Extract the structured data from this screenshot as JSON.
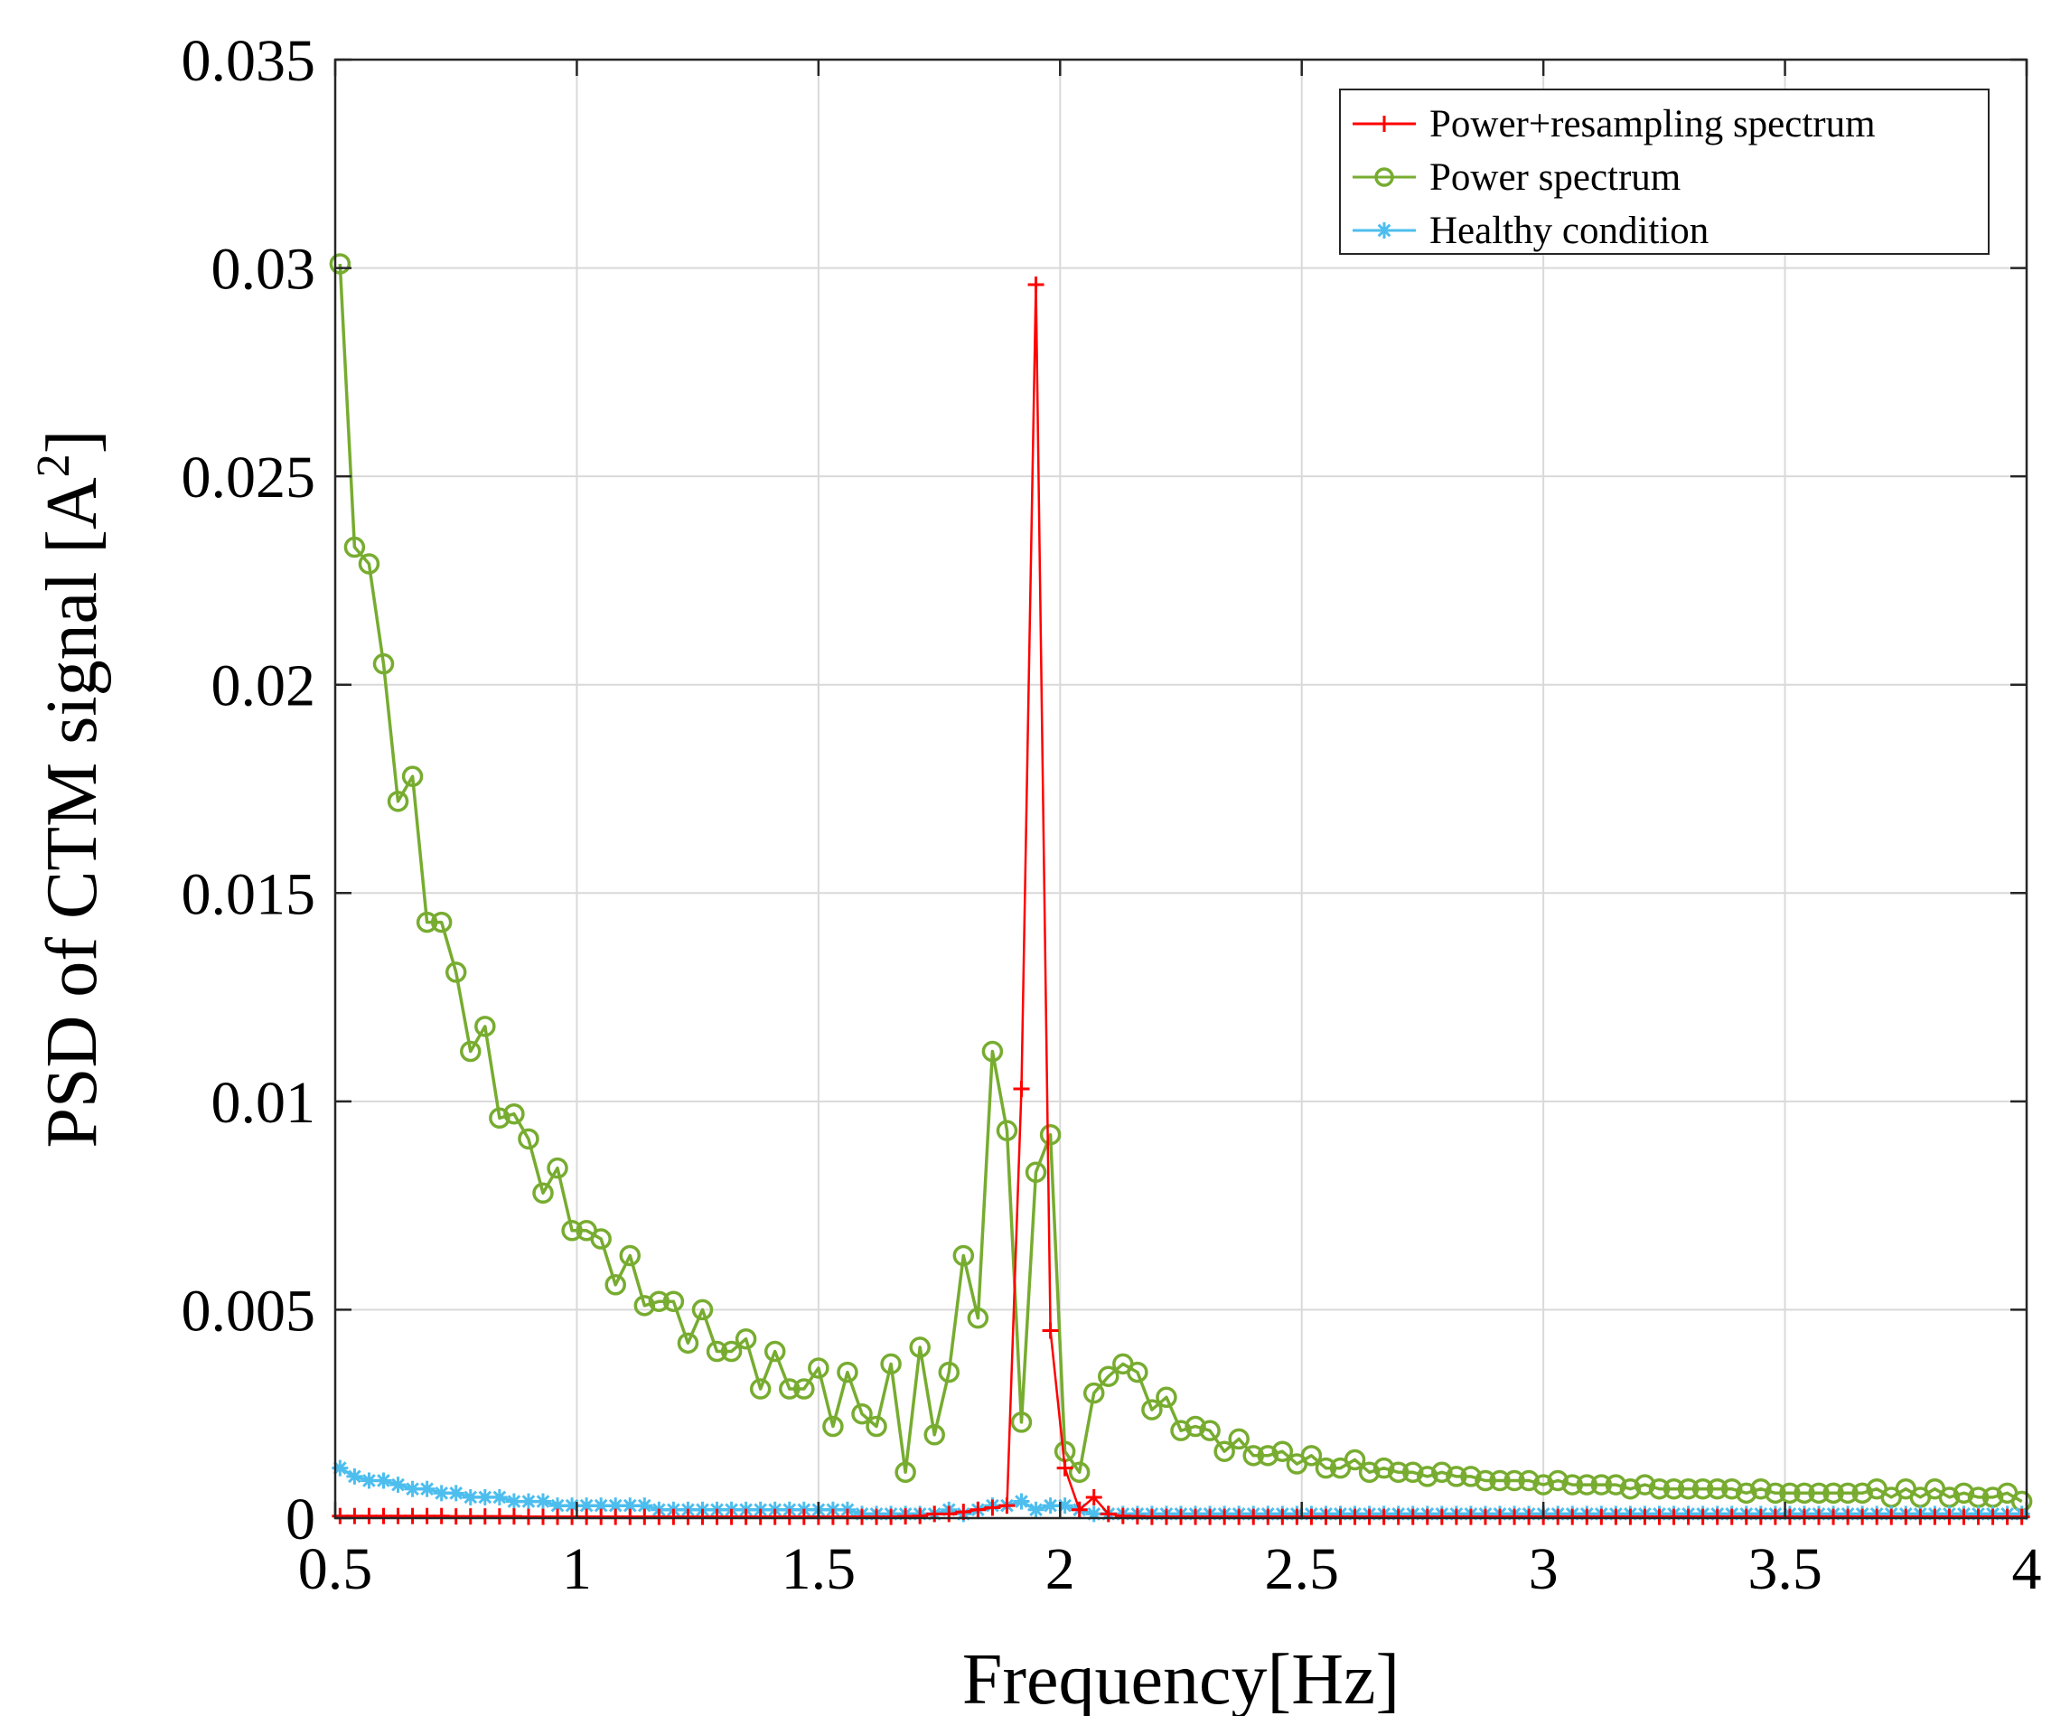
{
  "chart_data": {
    "type": "line",
    "title": "",
    "xlabel": "Frequency[Hz]",
    "ylabel_main": "PSD of CTM signal [A",
    "ylabel_sup": "2",
    "ylabel_end": "]",
    "xlim": [
      0.5,
      4
    ],
    "ylim": [
      0,
      0.035
    ],
    "xticks": [
      0.5,
      1,
      1.5,
      2,
      2.5,
      3,
      3.5,
      4
    ],
    "xtick_labels": [
      "0.5",
      "1",
      "1.5",
      "2",
      "2.5",
      "3",
      "3.5",
      "4"
    ],
    "yticks": [
      0,
      0.005,
      0.01,
      0.015,
      0.02,
      0.025,
      0.03,
      0.035
    ],
    "ytick_labels": [
      "0",
      "0.005",
      "0.01",
      "0.015",
      "0.02",
      "0.025",
      "0.03",
      "0.035"
    ],
    "grid": true,
    "legend_position": "top-right",
    "series": [
      {
        "name": "Power+resampling spectrum",
        "color": "#ff0000",
        "marker": "plus",
        "x": [
          0.51,
          0.54,
          0.57,
          0.6,
          0.63,
          0.66,
          0.69,
          0.72,
          0.75,
          0.78,
          0.81,
          0.84,
          0.87,
          0.9,
          0.93,
          0.96,
          0.99,
          1.02,
          1.05,
          1.08,
          1.11,
          1.14,
          1.17,
          1.2,
          1.23,
          1.26,
          1.29,
          1.32,
          1.35,
          1.38,
          1.41,
          1.44,
          1.47,
          1.5,
          1.53,
          1.56,
          1.59,
          1.62,
          1.65,
          1.68,
          1.71,
          1.74,
          1.77,
          1.8,
          1.83,
          1.86,
          1.89,
          1.92,
          1.95,
          1.98,
          2.01,
          2.04,
          2.07,
          2.1,
          2.13,
          2.16,
          2.19,
          2.22,
          2.25,
          2.28,
          2.31,
          2.34,
          2.37,
          2.4,
          2.43,
          2.46,
          2.49,
          2.52,
          2.55,
          2.58,
          2.61,
          2.64,
          2.67,
          2.7,
          2.73,
          2.76,
          2.79,
          2.82,
          2.85,
          2.88,
          2.91,
          2.94,
          2.97,
          3.0,
          3.03,
          3.06,
          3.09,
          3.12,
          3.15,
          3.18,
          3.21,
          3.24,
          3.27,
          3.3,
          3.33,
          3.36,
          3.39,
          3.42,
          3.45,
          3.48,
          3.51,
          3.54,
          3.57,
          3.6,
          3.63,
          3.66,
          3.69,
          3.72,
          3.75,
          3.78,
          3.81,
          3.84,
          3.87,
          3.9,
          3.93,
          3.96,
          3.99
        ],
        "y": [
          5e-05,
          5e-05,
          5e-05,
          5e-05,
          5e-05,
          5e-05,
          5e-05,
          5e-05,
          4e-05,
          4e-05,
          4e-05,
          4e-05,
          4e-05,
          3e-05,
          3e-05,
          3e-05,
          3e-05,
          3e-05,
          3e-05,
          3e-05,
          3e-05,
          3e-05,
          3e-05,
          3e-05,
          3e-05,
          3e-05,
          3e-05,
          3e-05,
          3e-05,
          3e-05,
          3e-05,
          3e-05,
          3e-05,
          3e-05,
          3e-05,
          3e-05,
          3e-05,
          3e-05,
          3e-05,
          4e-05,
          5e-05,
          0.0001,
          0.0001,
          0.00015,
          0.0002,
          0.00025,
          0.0003,
          0.0103,
          0.0296,
          0.0045,
          0.0012,
          0.0002,
          0.0005,
          0.0001,
          5e-05,
          4e-05,
          3e-05,
          3e-05,
          3e-05,
          3e-05,
          3e-05,
          3e-05,
          3e-05,
          3e-05,
          3e-05,
          3e-05,
          3e-05,
          3e-05,
          3e-05,
          3e-05,
          3e-05,
          3e-05,
          3e-05,
          3e-05,
          3e-05,
          3e-05,
          3e-05,
          3e-05,
          3e-05,
          3e-05,
          3e-05,
          3e-05,
          3e-05,
          3e-05,
          3e-05,
          3e-05,
          3e-05,
          3e-05,
          3e-05,
          3e-05,
          3e-05,
          3e-05,
          3e-05,
          3e-05,
          3e-05,
          3e-05,
          3e-05,
          3e-05,
          3e-05,
          3e-05,
          3e-05,
          3e-05,
          3e-05,
          3e-05,
          3e-05,
          3e-05,
          3e-05,
          3e-05,
          3e-05,
          3e-05,
          3e-05,
          3e-05,
          3e-05,
          3e-05,
          3e-05,
          3e-05,
          3e-05
        ]
      },
      {
        "name": "Power spectrum",
        "color": "#77ac30",
        "marker": "circle",
        "x": [
          0.51,
          0.54,
          0.57,
          0.6,
          0.63,
          0.66,
          0.69,
          0.72,
          0.75,
          0.78,
          0.81,
          0.84,
          0.87,
          0.9,
          0.93,
          0.96,
          0.99,
          1.02,
          1.05,
          1.08,
          1.11,
          1.14,
          1.17,
          1.2,
          1.23,
          1.26,
          1.29,
          1.32,
          1.35,
          1.38,
          1.41,
          1.44,
          1.47,
          1.5,
          1.53,
          1.56,
          1.59,
          1.62,
          1.65,
          1.68,
          1.71,
          1.74,
          1.77,
          1.8,
          1.83,
          1.86,
          1.89,
          1.92,
          1.95,
          1.98,
          2.01,
          2.04,
          2.07,
          2.1,
          2.13,
          2.16,
          2.19,
          2.22,
          2.25,
          2.28,
          2.31,
          2.34,
          2.37,
          2.4,
          2.43,
          2.46,
          2.49,
          2.52,
          2.55,
          2.58,
          2.61,
          2.64,
          2.67,
          2.7,
          2.73,
          2.76,
          2.79,
          2.82,
          2.85,
          2.88,
          2.91,
          2.94,
          2.97,
          3.0,
          3.03,
          3.06,
          3.09,
          3.12,
          3.15,
          3.18,
          3.21,
          3.24,
          3.27,
          3.3,
          3.33,
          3.36,
          3.39,
          3.42,
          3.45,
          3.48,
          3.51,
          3.54,
          3.57,
          3.6,
          3.63,
          3.66,
          3.69,
          3.72,
          3.75,
          3.78,
          3.81,
          3.84,
          3.87,
          3.9,
          3.93,
          3.96,
          3.99
        ],
        "y": [
          0.0301,
          0.0233,
          0.0229,
          0.0205,
          0.0172,
          0.0178,
          0.0143,
          0.0143,
          0.0131,
          0.0112,
          0.0118,
          0.0096,
          0.0097,
          0.0091,
          0.0078,
          0.0084,
          0.0069,
          0.0069,
          0.0067,
          0.0056,
          0.0063,
          0.0051,
          0.0052,
          0.0052,
          0.0042,
          0.005,
          0.004,
          0.004,
          0.0043,
          0.0031,
          0.004,
          0.0031,
          0.0031,
          0.0036,
          0.0022,
          0.0035,
          0.0025,
          0.0022,
          0.0037,
          0.0011,
          0.0041,
          0.002,
          0.0035,
          0.0063,
          0.0048,
          0.0112,
          0.0093,
          0.0023,
          0.0083,
          0.0092,
          0.0016,
          0.0011,
          0.003,
          0.0034,
          0.0037,
          0.0035,
          0.0026,
          0.0029,
          0.0021,
          0.0022,
          0.0021,
          0.0016,
          0.0019,
          0.0015,
          0.0015,
          0.0016,
          0.0013,
          0.0015,
          0.0012,
          0.0012,
          0.0014,
          0.0011,
          0.0012,
          0.0011,
          0.0011,
          0.001,
          0.0011,
          0.001,
          0.001,
          0.0009,
          0.0009,
          0.0009,
          0.0009,
          0.0008,
          0.0009,
          0.0008,
          0.0008,
          0.0008,
          0.0008,
          0.0007,
          0.0008,
          0.0007,
          0.0007,
          0.0007,
          0.0007,
          0.0007,
          0.0007,
          0.0006,
          0.0007,
          0.0006,
          0.0006,
          0.0006,
          0.0006,
          0.0006,
          0.0006,
          0.0006,
          0.0007,
          0.0005,
          0.0007,
          0.0005,
          0.0007,
          0.0005,
          0.0006,
          0.0005,
          0.0005,
          0.0006,
          0.0004
        ]
      },
      {
        "name": "Healthy condition",
        "color": "#4dbeee",
        "marker": "asterisk",
        "x": [
          0.51,
          0.54,
          0.57,
          0.6,
          0.63,
          0.66,
          0.69,
          0.72,
          0.75,
          0.78,
          0.81,
          0.84,
          0.87,
          0.9,
          0.93,
          0.96,
          0.99,
          1.02,
          1.05,
          1.08,
          1.11,
          1.14,
          1.17,
          1.2,
          1.23,
          1.26,
          1.29,
          1.32,
          1.35,
          1.38,
          1.41,
          1.44,
          1.47,
          1.5,
          1.53,
          1.56,
          1.59,
          1.62,
          1.65,
          1.68,
          1.71,
          1.74,
          1.77,
          1.8,
          1.83,
          1.86,
          1.89,
          1.92,
          1.95,
          1.98,
          2.01,
          2.04,
          2.07,
          2.1,
          2.13,
          2.16,
          2.19,
          2.22,
          2.25,
          2.28,
          2.31,
          2.34,
          2.37,
          2.4,
          2.43,
          2.46,
          2.49,
          2.52,
          2.55,
          2.58,
          2.61,
          2.64,
          2.67,
          2.7,
          2.73,
          2.76,
          2.79,
          2.82,
          2.85,
          2.88,
          2.91,
          2.94,
          2.97,
          3.0,
          3.03,
          3.06,
          3.09,
          3.12,
          3.15,
          3.18,
          3.21,
          3.24,
          3.27,
          3.3,
          3.33,
          3.36,
          3.39,
          3.42,
          3.45,
          3.48,
          3.51,
          3.54,
          3.57,
          3.6,
          3.63,
          3.66,
          3.69,
          3.72,
          3.75,
          3.78,
          3.81,
          3.84,
          3.87,
          3.9,
          3.93,
          3.96,
          3.99
        ],
        "y": [
          0.0012,
          0.001,
          0.0009,
          0.0009,
          0.0008,
          0.0007,
          0.0007,
          0.0006,
          0.0006,
          0.0005,
          0.0005,
          0.0005,
          0.0004,
          0.0004,
          0.0004,
          0.0003,
          0.0003,
          0.0003,
          0.0003,
          0.0003,
          0.0003,
          0.0003,
          0.0002,
          0.0002,
          0.0002,
          0.0002,
          0.0002,
          0.0002,
          0.0002,
          0.0002,
          0.0002,
          0.0002,
          0.0002,
          0.0002,
          0.0002,
          0.0002,
          0.0001,
          0.0001,
          0.0001,
          0.0001,
          0.0001,
          0.0001,
          0.0002,
          0.0001,
          0.0002,
          0.0003,
          0.0003,
          0.0004,
          0.0002,
          0.0003,
          0.0003,
          0.0002,
          0.0001,
          0.0001,
          0.0001,
          0.0001,
          0.0001,
          0.0001,
          0.0001,
          0.0001,
          0.0001,
          0.0001,
          0.0001,
          0.0001,
          0.0001,
          0.0001,
          0.0001,
          0.0001,
          0.0001,
          0.0001,
          0.0001,
          0.0001,
          0.0001,
          0.0001,
          0.0001,
          0.0001,
          0.0001,
          0.0001,
          0.0001,
          0.0001,
          0.0001,
          0.0001,
          0.0001,
          0.0001,
          0.0001,
          0.0001,
          0.0001,
          0.0001,
          0.0001,
          0.0001,
          0.0001,
          0.0001,
          0.0001,
          0.0001,
          0.0001,
          0.0001,
          0.0001,
          0.0001,
          0.0001,
          0.0001,
          0.0001,
          0.0001,
          0.0001,
          0.0001,
          0.0001,
          0.0001,
          0.0001,
          0.0001,
          0.0001,
          0.0001,
          0.0001,
          0.0001,
          0.0001,
          0.0001,
          0.0001,
          0.0001,
          0.0001
        ]
      }
    ]
  }
}
